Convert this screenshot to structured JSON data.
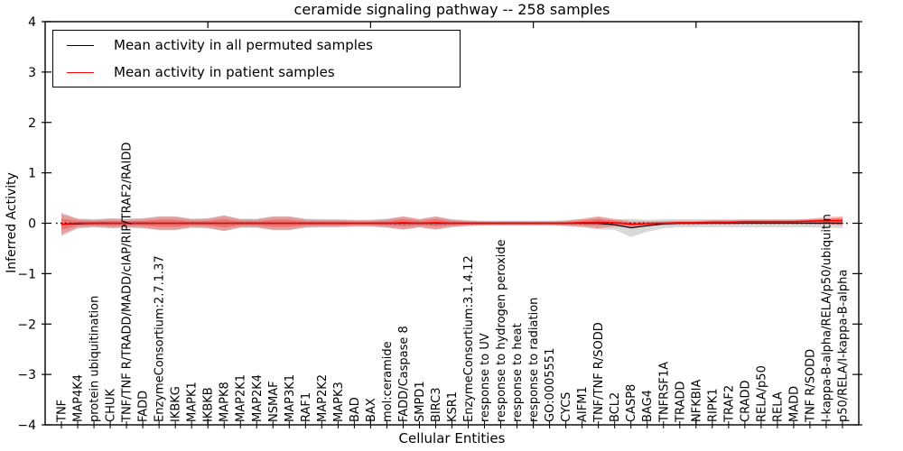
{
  "chart_data": {
    "type": "line",
    "title": "ceramide signaling pathway -- 258 samples",
    "xlabel": "Cellular Entities",
    "ylabel": "Inferred Activity",
    "ylim": [
      -4,
      4
    ],
    "yticks": [
      -4,
      -3,
      -2,
      -1,
      0,
      1,
      2,
      3,
      4
    ],
    "xlim": [
      0,
      50
    ],
    "xticks": [
      0,
      10,
      20,
      30,
      40,
      50
    ],
    "grid": false,
    "legend_position": "upper left",
    "legend": [
      {
        "label": "Mean activity in all permuted samples",
        "color": "#000000"
      },
      {
        "label": "Mean activity in patient samples",
        "color": "#ff0000"
      }
    ],
    "categories": [
      "TNF",
      "MAP4K4",
      "protein ubiquitination",
      "CHUK",
      "TNF/TNF R/TRADD/MADD/cIAP/RIP/TRAF2/RAIDD",
      "FADD",
      "EnzymeConsortium:2.7.1.37",
      "IKBKG",
      "MAPK1",
      "IKBKB",
      "MAPK8",
      "MAP2K1",
      "MAP2K4",
      "NSMAF",
      "MAP3K1",
      "RAF1",
      "MAP2K2",
      "MAPK3",
      "BAD",
      "BAX",
      "mol:ceramide",
      "FADD/Caspase 8",
      "SMPD1",
      "BIRC3",
      "KSR1",
      "EnzymeConsortium:3.1.4.12",
      "response to UV",
      "response to hydrogen peroxide",
      "response to heat",
      "response to radiation",
      "GO:0005551",
      "CYCS",
      "AIFM1",
      "TNF/TNF R/SODD",
      "BCL2",
      "CASP8",
      "BAG4",
      "TNFRSF1A",
      "TRADD",
      "NFKBIA",
      "RIPK1",
      "TRAF2",
      "CRADD",
      "RELA/p50",
      "RELA",
      "MADD",
      "TNF R/SODD",
      "I-kappa-B-alpha/RELA/p50/ubiquitin",
      "p50/RELA/I-kappa-B-alpha"
    ],
    "series": [
      {
        "name": "Mean activity in all permuted samples",
        "color": "#000000",
        "band_color": "rgba(0,0,0,0.15)",
        "values": [
          -0.02,
          -0.01,
          0,
          0,
          0,
          0,
          0,
          0,
          0,
          0,
          0,
          0,
          0,
          0,
          0,
          0,
          0,
          0,
          0,
          0,
          0,
          0,
          0,
          0,
          0,
          0,
          0,
          0,
          0,
          0,
          0,
          0,
          0,
          0,
          -0.03,
          -0.09,
          -0.05,
          -0.01,
          0,
          0,
          0,
          0,
          0,
          0,
          0,
          0,
          0,
          0,
          0
        ],
        "band_halfwidth": [
          0.24,
          0.1,
          0.08,
          0.1,
          0.09,
          0.1,
          0.14,
          0.14,
          0.09,
          0.1,
          0.16,
          0.09,
          0.09,
          0.14,
          0.14,
          0.09,
          0.08,
          0.08,
          0.07,
          0.07,
          0.09,
          0.13,
          0.08,
          0.13,
          0.08,
          0.06,
          0.05,
          0.05,
          0.05,
          0.05,
          0.05,
          0.06,
          0.08,
          0.12,
          0.1,
          0.18,
          0.12,
          0.09,
          0.08,
          0.08,
          0.08,
          0.08,
          0.08,
          0.08,
          0.08,
          0.08,
          0.08,
          0.09,
          0.1
        ]
      },
      {
        "name": "Mean activity in patient samples",
        "color": "#ff0000",
        "band_color": "rgba(255,0,0,0.27)",
        "values": [
          -0.02,
          0,
          0,
          0,
          0,
          0,
          0,
          0,
          0,
          0,
          0,
          0,
          0,
          0,
          0,
          0,
          0,
          0,
          0,
          0,
          0,
          0.01,
          0,
          0.01,
          0,
          0,
          0,
          0,
          0,
          0,
          0,
          0,
          0.01,
          0.02,
          0.01,
          -0.02,
          -0.01,
          0,
          0.01,
          0.01,
          0.02,
          0.02,
          0.03,
          0.03,
          0.03,
          0.03,
          0.04,
          0.05,
          0.05
        ],
        "band_halfwidth": [
          0.2,
          0.09,
          0.07,
          0.09,
          0.08,
          0.09,
          0.13,
          0.13,
          0.08,
          0.09,
          0.15,
          0.08,
          0.08,
          0.13,
          0.13,
          0.08,
          0.07,
          0.07,
          0.06,
          0.06,
          0.08,
          0.13,
          0.08,
          0.13,
          0.07,
          0.05,
          0.04,
          0.04,
          0.04,
          0.04,
          0.04,
          0.05,
          0.08,
          0.12,
          0.08,
          0.06,
          0.05,
          0.04,
          0.04,
          0.04,
          0.04,
          0.04,
          0.04,
          0.04,
          0.04,
          0.04,
          0.05,
          0.07,
          0.09
        ]
      }
    ],
    "zero_line": {
      "y": 0,
      "color": "#000000",
      "style": "dotted"
    }
  }
}
